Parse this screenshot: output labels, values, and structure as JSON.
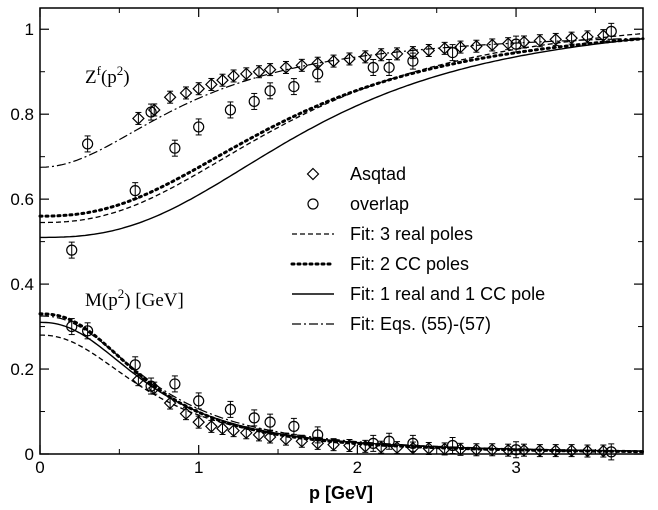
{
  "chart_data": {
    "type": "scatter",
    "title": "",
    "xlabel": "p [GeV]",
    "ylabel": "",
    "xlim": [
      0,
      3.8
    ],
    "ylim": [
      0,
      1.05
    ],
    "xticks": [
      "0",
      "1",
      "2",
      "3"
    ],
    "yticks": [
      "0",
      "0.2",
      "0.4",
      "0.6",
      "0.8",
      "1"
    ],
    "grid": false,
    "legend_position": "center-right",
    "annotations": [
      {
        "id": "zf",
        "text": "Z",
        "sup": "f",
        "after": "(p",
        "sup2": "2",
        "end": ")"
      },
      {
        "id": "mass",
        "text": "M(p",
        "sup": "2",
        "after": ") [GeV]"
      }
    ],
    "legend": [
      {
        "label": "Asqtad",
        "kind": "diamond"
      },
      {
        "label": "overlap",
        "kind": "circle"
      },
      {
        "label": "Fit: 3 real poles",
        "kind": "dashed"
      },
      {
        "label": "Fit: 2 CC poles",
        "kind": "dotted"
      },
      {
        "label": "Fit: 1 real and 1 CC pole",
        "kind": "solid"
      },
      {
        "label": "Fit: Eqs. (55)-(57)",
        "kind": "dashdot"
      }
    ],
    "series": [
      {
        "name": "Asqtad",
        "marker": "diamond",
        "x": [
          0.62,
          0.72,
          0.82,
          0.92,
          1.0,
          1.08,
          1.15,
          1.22,
          1.3,
          1.38,
          1.45,
          1.55,
          1.65,
          1.75,
          1.85,
          1.95,
          2.05,
          2.15,
          2.25,
          2.35,
          2.45,
          2.55,
          2.65,
          2.75,
          2.85,
          2.95,
          3.05,
          3.15,
          3.25,
          3.35,
          3.45,
          3.55
        ],
        "y_z": [
          0.79,
          0.81,
          0.84,
          0.85,
          0.86,
          0.87,
          0.88,
          0.89,
          0.895,
          0.9,
          0.905,
          0.91,
          0.915,
          0.92,
          0.925,
          0.93,
          0.935,
          0.94,
          0.942,
          0.945,
          0.95,
          0.955,
          0.958,
          0.96,
          0.963,
          0.966,
          0.97,
          0.973,
          0.976,
          0.979,
          0.982,
          0.985
        ],
        "y_m": [
          0.175,
          0.155,
          0.12,
          0.095,
          0.075,
          0.065,
          0.06,
          0.055,
          0.05,
          0.045,
          0.04,
          0.035,
          0.03,
          0.025,
          0.022,
          0.02,
          0.018,
          0.016,
          0.015,
          0.014,
          0.013,
          0.012,
          0.011,
          0.01,
          0.01,
          0.009,
          0.009,
          0.008,
          0.008,
          0.008,
          0.007,
          0.007
        ]
      },
      {
        "name": "overlap",
        "marker": "circle",
        "x": [
          0.2,
          0.3,
          0.6,
          0.7,
          0.85,
          1.0,
          1.2,
          1.35,
          1.45,
          1.6,
          1.75,
          2.1,
          2.2,
          2.35,
          2.6,
          3.0,
          3.6
        ],
        "y_z": [
          0.48,
          0.73,
          0.62,
          0.805,
          0.72,
          0.77,
          0.81,
          0.83,
          0.855,
          0.865,
          0.895,
          0.91,
          0.91,
          0.925,
          0.945,
          0.965,
          0.995
        ],
        "y_m": [
          0.3,
          0.29,
          0.21,
          0.16,
          0.165,
          0.125,
          0.105,
          0.085,
          0.075,
          0.065,
          0.045,
          0.025,
          0.03,
          0.025,
          0.02,
          0.01,
          0.005
        ]
      }
    ],
    "fits": [
      {
        "name": "Fit: 3 real poles",
        "style": "dashed",
        "z": {
          "z0": 0.545,
          "a": 1.05,
          "k": 1.65,
          "n": 2.4
        },
        "m": {
          "m0": 0.28,
          "k": 0.72,
          "n": 2.2
        }
      },
      {
        "name": "Fit: 2 CC poles",
        "style": "dotted",
        "z": {
          "z0": 0.56,
          "a": 1.03,
          "k": 1.6,
          "n": 2.4
        },
        "m": {
          "m0": 0.33,
          "k": 0.7,
          "n": 2.4
        }
      },
      {
        "name": "Fit: 1 real and 1 CC pole",
        "style": "solid",
        "z": {
          "z0": 0.51,
          "a": 1.04,
          "k": 1.75,
          "n": 2.6
        },
        "m": {
          "m0": 0.31,
          "k": 0.72,
          "n": 2.3
        }
      },
      {
        "name": "Fit: Eqs. (55)-(57)",
        "style": "dashdot",
        "z": {
          "z0": 0.675,
          "a": 1.0,
          "k": 1.0,
          "n": 2.0
        },
        "m": {
          "m0": 0.325,
          "k": 0.73,
          "n": 2.3
        }
      }
    ]
  }
}
